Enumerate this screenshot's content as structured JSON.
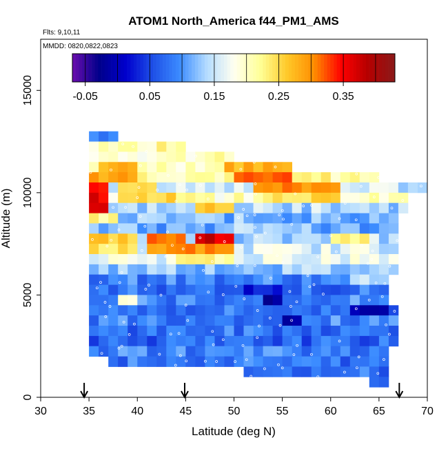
{
  "chart_data": {
    "type": "heatmap",
    "title": "ATOM1 North_America f44_PM1_AMS",
    "annotations": [
      "Flts: 9,10,11",
      "MMDD: 0820,0822,0823"
    ],
    "xlabel": "Latitude (deg N)",
    "ylabel": "Altitude (m)",
    "xlim": [
      30,
      70
    ],
    "ylim": [
      0,
      17500
    ],
    "x_ticks": [
      "30",
      "35",
      "40",
      "45",
      "50",
      "55",
      "60",
      "65",
      "70"
    ],
    "y_ticks": [
      "0",
      "5000",
      "10000",
      "15000"
    ],
    "colorbar": {
      "range": [
        -0.07,
        0.43
      ],
      "tick_values": [
        -0.05,
        0.05,
        0.15,
        0.25,
        0.35
      ],
      "tick_labels": [
        "-0.05",
        "0.05",
        "0.15",
        "0.25",
        "0.35"
      ],
      "stops": [
        "#6a0dad",
        "#00008b",
        "#0000cd",
        "#1e50e6",
        "#3c8cff",
        "#b4dcff",
        "#fffff0",
        "#ffff96",
        "#ffc828",
        "#ff8c00",
        "#ff0000",
        "#b40000",
        "#8b1a1a"
      ]
    },
    "arrows_latitude": [
      34.5,
      44.9,
      67.1
    ],
    "grid": false,
    "lat_step": 1,
    "alt_step": 500,
    "rows": [
      {
        "alt": 12750,
        "lat_start": 35,
        "lat_end": 38,
        "base": 0.1,
        "hot": []
      },
      {
        "alt": 12250,
        "lat_start": 35,
        "lat_end": 45,
        "base": 0.21,
        "hot": []
      },
      {
        "alt": 11750,
        "lat_start": 35,
        "lat_end": 50,
        "base": 0.2,
        "hot": []
      },
      {
        "alt": 11250,
        "lat_start": 35,
        "lat_end": 56,
        "base": 0.21,
        "hot": [
          [
            36,
            40,
            0.27
          ],
          [
            49,
            56,
            0.28
          ]
        ]
      },
      {
        "alt": 10750,
        "lat_start": 35,
        "lat_end": 65,
        "base": 0.22,
        "hot": [
          [
            35,
            40,
            0.29
          ],
          [
            50,
            56,
            0.31
          ]
        ]
      },
      {
        "alt": 10250,
        "lat_start": 35,
        "lat_end": 70,
        "base": 0.15,
        "hot": [
          [
            35,
            37,
            0.35
          ],
          [
            38,
            42,
            0.25
          ],
          [
            52,
            61,
            0.3
          ]
        ]
      },
      {
        "alt": 9750,
        "lat_start": 35,
        "lat_end": 68,
        "base": 0.2,
        "hot": [
          [
            35,
            37,
            0.36
          ],
          [
            38,
            44,
            0.26
          ],
          [
            53,
            61,
            0.25
          ]
        ]
      },
      {
        "alt": 9250,
        "lat_start": 35,
        "lat_end": 68,
        "base": 0.14,
        "hot": [
          [
            35,
            37,
            0.37
          ],
          [
            46,
            50,
            0.27
          ]
        ]
      },
      {
        "alt": 8750,
        "lat_start": 35,
        "lat_end": 67,
        "base": 0.12,
        "hot": [
          [
            35,
            38,
            0.22
          ]
        ]
      },
      {
        "alt": 8250,
        "lat_start": 35,
        "lat_end": 67,
        "base": 0.11,
        "hot": [
          [
            48,
            58,
            0.14
          ]
        ]
      },
      {
        "alt": 7750,
        "lat_start": 35,
        "lat_end": 67,
        "base": 0.14,
        "hot": [
          [
            35,
            40,
            0.26
          ],
          [
            41,
            45,
            0.32
          ],
          [
            46,
            50,
            0.37
          ],
          [
            60,
            64,
            0.22
          ]
        ]
      },
      {
        "alt": 7250,
        "lat_start": 35,
        "lat_end": 67,
        "base": 0.16,
        "hot": [
          [
            35,
            40,
            0.24
          ],
          [
            41,
            50,
            0.3
          ]
        ]
      },
      {
        "alt": 6750,
        "lat_start": 35,
        "lat_end": 67,
        "base": 0.17,
        "hot": [
          [
            44,
            50,
            0.22
          ]
        ]
      },
      {
        "alt": 6250,
        "lat_start": 35,
        "lat_end": 67,
        "base": 0.13,
        "hot": []
      },
      {
        "alt": 5750,
        "lat_start": 35,
        "lat_end": 66,
        "base": 0.09,
        "hot": [
          [
            62,
            66,
            0.14
          ]
        ]
      },
      {
        "alt": 5250,
        "lat_start": 35,
        "lat_end": 66,
        "base": 0.08,
        "hot": [
          [
            51,
            55,
            0.02
          ]
        ]
      },
      {
        "alt": 4750,
        "lat_start": 35,
        "lat_end": 66,
        "base": 0.09,
        "hot": [
          [
            38,
            40,
            0.18
          ],
          [
            53,
            55,
            -0.02
          ]
        ]
      },
      {
        "alt": 4250,
        "lat_start": 35,
        "lat_end": 67,
        "base": 0.08,
        "hot": [
          [
            62,
            65,
            0.0
          ],
          [
            65,
            66,
            -0.03
          ]
        ]
      },
      {
        "alt": 3750,
        "lat_start": 35,
        "lat_end": 67,
        "base": 0.09,
        "hot": [
          [
            55,
            57,
            0.0
          ]
        ]
      },
      {
        "alt": 3250,
        "lat_start": 35,
        "lat_end": 67,
        "base": 0.08,
        "hot": []
      },
      {
        "alt": 2750,
        "lat_start": 35,
        "lat_end": 67,
        "base": 0.07,
        "hot": []
      },
      {
        "alt": 2250,
        "lat_start": 35,
        "lat_end": 66,
        "base": 0.09,
        "hot": []
      },
      {
        "alt": 1750,
        "lat_start": 37,
        "lat_end": 66,
        "base": 0.08,
        "hot": []
      },
      {
        "alt": 1250,
        "lat_start": 51,
        "lat_end": 66,
        "base": 0.08,
        "hot": []
      },
      {
        "alt": 750,
        "lat_start": 64,
        "lat_end": 66,
        "base": 0.08,
        "hot": []
      }
    ]
  }
}
